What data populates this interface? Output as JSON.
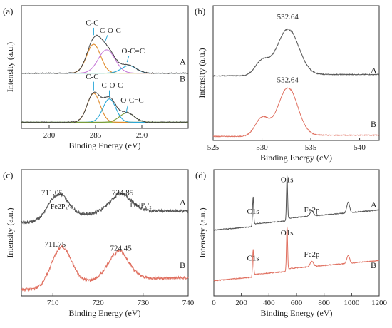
{
  "chart_data": [
    {
      "id": "a",
      "type": "line",
      "panel_label": "(a)",
      "xlabel": "Binding Energy (eV)",
      "ylabel": "Intensity (a.u.)",
      "xlim": [
        277,
        295
      ],
      "xticks": [
        280,
        285,
        290
      ],
      "series": [
        {
          "name": "C-C",
          "trace": "A",
          "color": "#e08a2b",
          "center": 284.8,
          "height": 0.62,
          "width": 0.75
        },
        {
          "name": "C-O-C",
          "trace": "A",
          "color": "#c77ad8",
          "center": 286.2,
          "height": 0.5,
          "width": 0.9
        },
        {
          "name": "O-C=C",
          "trace": "A",
          "color": "#2aa8d8",
          "center": 288.6,
          "height": 0.16,
          "width": 0.8
        },
        {
          "name": "C-C",
          "trace": "B",
          "color": "#e08a2b",
          "center": 284.8,
          "height": 0.62,
          "width": 0.7
        },
        {
          "name": "C-O-C",
          "trace": "B",
          "color": "#2aa8d8",
          "center": 286.5,
          "height": 0.5,
          "width": 0.7
        },
        {
          "name": "O-C=C",
          "trace": "B",
          "color": "#7a9a3a",
          "center": 288.4,
          "height": 0.2,
          "width": 0.8
        }
      ],
      "trace_labels": [
        "A",
        "B"
      ],
      "peak_labels": [
        {
          "text": "C-C",
          "trace": "A",
          "x": 284.8
        },
        {
          "text": "C-O-C",
          "trace": "A",
          "x": 286.3
        },
        {
          "text": "O-C=C",
          "trace": "A",
          "x": 288.6
        },
        {
          "text": "C-C",
          "trace": "B",
          "x": 284.8
        },
        {
          "text": "C-O-C",
          "trace": "B",
          "x": 286.5
        },
        {
          "text": "O-C=C",
          "trace": "B",
          "x": 288.5
        }
      ]
    },
    {
      "id": "b",
      "type": "line",
      "panel_label": "(b)",
      "xlabel": "Binding Encrgy (cV)",
      "ylabel": "Intensity (a.u.)",
      "xlim": [
        525,
        542
      ],
      "xticks": [
        525,
        530,
        535,
        540
      ],
      "series": [
        {
          "trace": "A",
          "color": "#555555",
          "peaks": [
            {
              "center": 532.64,
              "height": 0.72,
              "width": 1.1
            },
            {
              "center": 530.0,
              "height": 0.22,
              "width": 0.7
            }
          ]
        },
        {
          "trace": "B",
          "color": "#e07060",
          "peaks": [
            {
              "center": 532.64,
              "height": 0.8,
              "width": 1.0
            },
            {
              "center": 530.0,
              "height": 0.3,
              "width": 0.7
            }
          ]
        }
      ],
      "trace_labels": [
        "A",
        "B"
      ],
      "peak_labels": [
        {
          "text": "532.64",
          "trace": "A",
          "x": 532.64
        },
        {
          "text": "532.64",
          "trace": "B",
          "x": 532.64
        }
      ]
    },
    {
      "id": "c",
      "type": "line",
      "panel_label": "(c)",
      "xlabel": "Binding Energy (eV)",
      "ylabel": "Intensity (a.u.)",
      "xlim": [
        703,
        740
      ],
      "xticks": [
        710,
        720,
        730,
        740
      ],
      "series": [
        {
          "trace": "A",
          "color": "#555555",
          "peaks": [
            {
              "center": 711.05,
              "height": 0.55,
              "width": 2.2
            },
            {
              "center": 724.85,
              "height": 0.35,
              "width": 2.5
            }
          ]
        },
        {
          "trace": "B",
          "color": "#e07060",
          "peaks": [
            {
              "center": 711.75,
              "height": 0.8,
              "width": 2.2
            },
            {
              "center": 724.45,
              "height": 0.55,
              "width": 2.3
            }
          ]
        }
      ],
      "trace_labels": [
        "A",
        "B"
      ],
      "peak_labels": [
        {
          "text": "711.05",
          "trace": "A",
          "x": 711.05
        },
        {
          "text": "724.85",
          "trace": "A",
          "x": 724.85
        },
        {
          "text": "Fe2P₃/₂",
          "trace": "A",
          "x": 712.8
        },
        {
          "text": "Fe2P₁/₂",
          "trace": "A",
          "x": 729.5
        },
        {
          "text": "711.75",
          "trace": "B",
          "x": 711.75
        },
        {
          "text": "724.45",
          "trace": "B",
          "x": 724.45
        }
      ]
    },
    {
      "id": "d",
      "type": "line",
      "panel_label": "(d)",
      "xlabel": "Binding Energy (eV)",
      "ylabel": "Intensity (a.u.)",
      "xlim": [
        0,
        1200
      ],
      "xticks": [
        0,
        200,
        400,
        600,
        800,
        1000,
        1200
      ],
      "series": [
        {
          "trace": "A",
          "color": "#555555",
          "peaks": [
            {
              "center": 284.8,
              "height": 0.55,
              "width": 4
            },
            {
              "center": 531,
              "height": 0.85,
              "width": 4
            },
            {
              "center": 711,
              "height": 0.1,
              "width": 12
            },
            {
              "center": 975,
              "height": 0.2,
              "width": 10
            }
          ]
        },
        {
          "trace": "B",
          "color": "#e07060",
          "peaks": [
            {
              "center": 284.8,
              "height": 0.5,
              "width": 4
            },
            {
              "center": 531,
              "height": 0.85,
              "width": 4
            },
            {
              "center": 711,
              "height": 0.1,
              "width": 12
            },
            {
              "center": 975,
              "height": 0.15,
              "width": 10
            }
          ]
        }
      ],
      "trace_labels": [
        "A",
        "B"
      ],
      "peak_labels": [
        {
          "text": "C1s",
          "trace": "A",
          "x": 285
        },
        {
          "text": "O1s",
          "trace": "A",
          "x": 531
        },
        {
          "text": "Fe2p",
          "trace": "A",
          "x": 711
        },
        {
          "text": "C1s",
          "trace": "B",
          "x": 285
        },
        {
          "text": "O1s",
          "trace": "B",
          "x": 531
        },
        {
          "text": "Fe2p",
          "trace": "B",
          "x": 711
        }
      ]
    }
  ]
}
